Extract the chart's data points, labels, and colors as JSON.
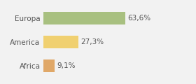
{
  "categories": [
    "Europa",
    "America",
    "Africa"
  ],
  "values": [
    63.6,
    27.3,
    9.1
  ],
  "labels": [
    "63,6%",
    "27,3%",
    "9,1%"
  ],
  "bar_colors": [
    "#a8c080",
    "#f0d070",
    "#e0a868"
  ],
  "background_color": "#f2f2f2",
  "xlim": [
    0,
    100
  ],
  "bar_height": 0.52,
  "label_fontsize": 7.5,
  "tick_fontsize": 7.5
}
